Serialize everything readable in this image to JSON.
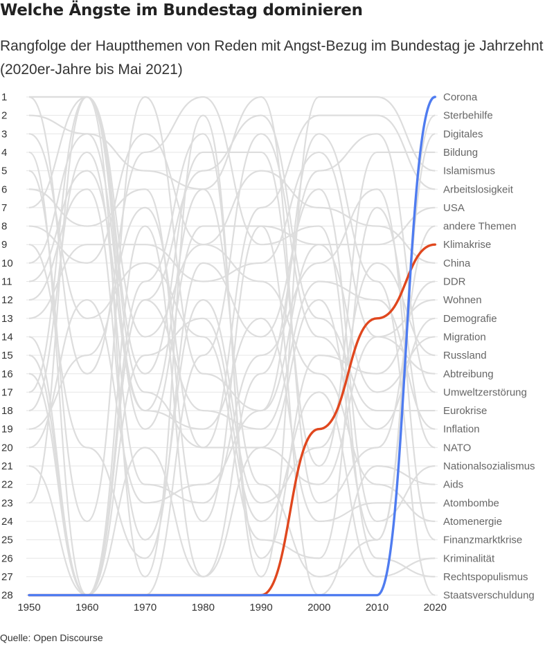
{
  "title": "Welche Ängste im Bundestag dominieren",
  "subtitle": "Rangfolge der Hauptthemen von Reden mit Angst-Bezug im Bundestag je Jahrzehnt (2020er-Jahre bis Mai 2021)",
  "source": "Quelle: Open Discourse",
  "chart_data": {
    "type": "line",
    "chart_subtype": "bump",
    "x": [
      1950,
      1960,
      1970,
      1980,
      1990,
      2000,
      2010,
      2020
    ],
    "xlabel": "",
    "ylabel": "",
    "ylim": [
      28,
      1
    ],
    "y_ticks": [
      1,
      2,
      3,
      4,
      5,
      6,
      7,
      8,
      9,
      10,
      11,
      12,
      13,
      14,
      15,
      16,
      17,
      18,
      19,
      20,
      21,
      22,
      23,
      24,
      25,
      26,
      27,
      28
    ],
    "grid": true,
    "colors": {
      "highlight_blue": "#4f7cf0",
      "highlight_red": "#e0471e",
      "background_line": "#dddddd",
      "label_grey": "#666666"
    },
    "series": [
      {
        "name": "Corona",
        "values": [
          28,
          28,
          28,
          28,
          28,
          28,
          28,
          1
        ],
        "highlight": "#4f7cf0"
      },
      {
        "name": "Sterbehilfe",
        "values": [
          16,
          28,
          20,
          27,
          20,
          12,
          25,
          2
        ]
      },
      {
        "name": "Digitales",
        "values": [
          2,
          3,
          18,
          6,
          22,
          27,
          25,
          3
        ]
      },
      {
        "name": "Bildung",
        "values": [
          7,
          1,
          16,
          4,
          4,
          21,
          4,
          4
        ]
      },
      {
        "name": "Islamismus",
        "values": [
          1,
          1,
          27,
          2,
          27,
          1,
          1,
          5
        ]
      },
      {
        "name": "Arbeitslosigkeit",
        "values": [
          1,
          1,
          17,
          20,
          7,
          2,
          2,
          6
        ]
      },
      {
        "name": "USA",
        "values": [
          23,
          1,
          19,
          8,
          8,
          9,
          9,
          7
        ]
      },
      {
        "name": "andere Themen",
        "values": [
          10,
          3,
          5,
          6,
          1,
          23,
          20,
          8
        ]
      },
      {
        "name": "Klimakrise",
        "values": [
          28,
          28,
          28,
          28,
          28,
          19,
          13,
          9
        ],
        "highlight": "#e0471e"
      },
      {
        "name": "China",
        "values": [
          8,
          10,
          3,
          9,
          5,
          7,
          8,
          10
        ]
      },
      {
        "name": "DDR",
        "values": [
          4,
          28,
          11,
          3,
          26,
          15,
          16,
          11
        ]
      },
      {
        "name": "Wohnen",
        "values": [
          13,
          9,
          9,
          11,
          10,
          4,
          14,
          12
        ]
      },
      {
        "name": "Demografie",
        "values": [
          15,
          28,
          28,
          15,
          3,
          14,
          19,
          13
        ]
      },
      {
        "name": "Migration",
        "values": [
          5,
          24,
          1,
          16,
          18,
          9,
          17,
          14
        ]
      },
      {
        "name": "Russland",
        "values": [
          12,
          6,
          25,
          12,
          23,
          20,
          10,
          15
        ]
      },
      {
        "name": "Abtreibung",
        "values": [
          19,
          15,
          7,
          20,
          20,
          22,
          14,
          16
        ]
      },
      {
        "name": "Umweltzerstörung",
        "values": [
          28,
          28,
          8,
          27,
          16,
          5,
          3,
          17
        ]
      },
      {
        "name": "Eurokrise",
        "values": [
          28,
          28,
          12,
          5,
          2,
          13,
          18,
          18
        ]
      },
      {
        "name": "Inflation",
        "values": [
          14,
          28,
          12,
          18,
          19,
          11,
          12,
          19
        ]
      },
      {
        "name": "NATO",
        "values": [
          3,
          13,
          10,
          14,
          25,
          26,
          7,
          20
        ]
      },
      {
        "name": "Nationalsozialismus",
        "values": [
          9,
          20,
          26,
          10,
          14,
          6,
          24,
          21
        ]
      },
      {
        "name": "Aids",
        "values": [
          6,
          8,
          6,
          24,
          8,
          28,
          21,
          22
        ]
      },
      {
        "name": "Atombombe",
        "values": [
          11,
          5,
          18,
          19,
          13,
          24,
          23,
          23
        ]
      },
      {
        "name": "Atomenergie",
        "values": [
          17,
          1,
          14,
          9,
          11,
          16,
          22,
          24
        ]
      },
      {
        "name": "Finanzmarktkrise",
        "values": [
          18,
          4,
          22,
          23,
          15,
          10,
          6,
          25
        ]
      },
      {
        "name": "Kriminalität",
        "values": [
          21,
          28,
          15,
          13,
          24,
          17,
          27,
          26
        ]
      },
      {
        "name": "Rechtspopulismus",
        "values": [
          1,
          16,
          4,
          1,
          9,
          8,
          26,
          27
        ]
      },
      {
        "name": "Staatsverschuldung",
        "values": [
          20,
          12,
          23,
          22,
          18,
          3,
          11,
          28
        ]
      }
    ]
  }
}
